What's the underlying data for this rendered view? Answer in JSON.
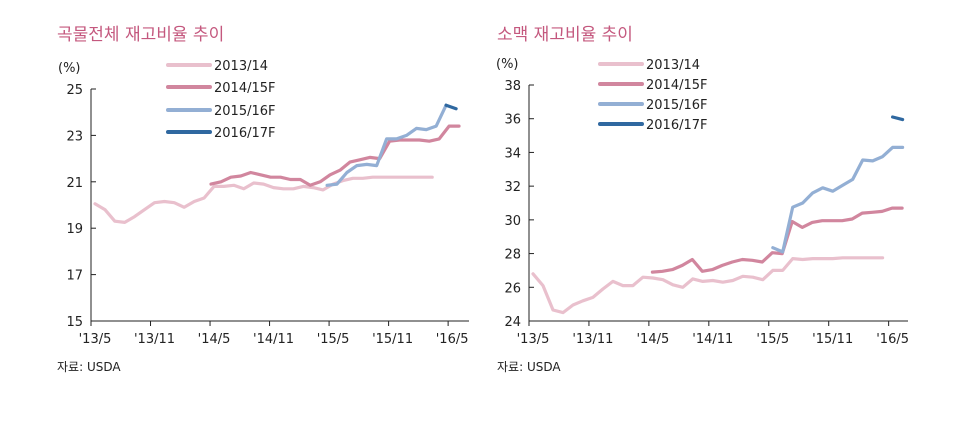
{
  "colors": {
    "s1": "#e9c0cd",
    "s2": "#d1869e",
    "s3": "#93afd4",
    "s4": "#2f68a0",
    "title": "#c4587e"
  },
  "chart_data": [
    {
      "type": "line",
      "title": "곡물전체 재고비율 추이",
      "ylabel": "(%)",
      "source": "자료: USDA",
      "ylim": [
        15,
        25
      ],
      "yticks": [
        "15",
        "17",
        "19",
        "21",
        "23",
        "25"
      ],
      "xticks": [
        "'13/5",
        "'13/11",
        "'14/5",
        "'14/11",
        "'15/5",
        "'15/11",
        "'16/5"
      ],
      "xunit": "months since 2013/5",
      "series": [
        {
          "name": "2013/14",
          "start": 0.4,
          "values": [
            20.05,
            19.8,
            19.3,
            19.25,
            19.5,
            19.8,
            20.1,
            20.15,
            20.1,
            19.9,
            20.15,
            20.3,
            20.8,
            20.8,
            20.85,
            20.7,
            20.95,
            20.9,
            20.75,
            20.7,
            20.7,
            20.8,
            20.75,
            20.65,
            20.9,
            21.05,
            21.15,
            21.15,
            21.2,
            21.2,
            21.2,
            21.2,
            21.2,
            21.2,
            21.2
          ]
        },
        {
          "name": "2014/15F",
          "start": 12.1,
          "values": [
            20.9,
            21.0,
            21.2,
            21.25,
            21.4,
            21.3,
            21.2,
            21.2,
            21.1,
            21.1,
            20.85,
            21.0,
            21.3,
            21.5,
            21.85,
            21.95,
            22.05,
            22.0,
            22.75,
            22.8,
            22.8,
            22.8,
            22.75,
            22.85,
            23.4,
            23.4
          ]
        },
        {
          "name": "2015/16F",
          "start": 23.8,
          "values": [
            20.85,
            20.9,
            21.4,
            21.7,
            21.75,
            21.7,
            22.85,
            22.85,
            23.0,
            23.3,
            23.25,
            23.4,
            24.3
          ]
        },
        {
          "name": "2016/17F",
          "start": 35.8,
          "values": [
            24.3,
            24.15
          ]
        }
      ]
    },
    {
      "type": "line",
      "title": "소맥 재고비율 추이",
      "ylabel": "(%)",
      "source": "자료: USDA",
      "ylim": [
        24,
        38
      ],
      "yticks": [
        "24",
        "26",
        "28",
        "30",
        "32",
        "34",
        "36",
        "38"
      ],
      "xticks": [
        "'13/5",
        "'13/11",
        "'14/5",
        "'14/11",
        "'15/5",
        "'15/11",
        "'16/5"
      ],
      "xunit": "months since 2013/5",
      "series": [
        {
          "name": "2013/14",
          "start": 0.4,
          "values": [
            26.8,
            26.1,
            24.65,
            24.5,
            24.95,
            25.2,
            25.4,
            25.9,
            26.35,
            26.1,
            26.1,
            26.6,
            26.55,
            26.45,
            26.15,
            26.0,
            26.5,
            26.35,
            26.4,
            26.3,
            26.4,
            26.65,
            26.6,
            26.45,
            27.0,
            27.0,
            27.7,
            27.65,
            27.7,
            27.7,
            27.7,
            27.75,
            27.75,
            27.75,
            27.75,
            27.75
          ]
        },
        {
          "name": "2014/15F",
          "start": 12.35,
          "values": [
            26.9,
            26.95,
            27.05,
            27.3,
            27.65,
            26.95,
            27.05,
            27.3,
            27.5,
            27.65,
            27.6,
            27.5,
            28.05,
            28.0,
            29.9,
            29.55,
            29.85,
            29.95,
            29.95,
            29.95,
            30.05,
            30.4,
            30.45,
            30.5,
            30.7,
            30.7
          ]
        },
        {
          "name": "2015/16F",
          "start": 24.4,
          "values": [
            28.35,
            28.1,
            30.75,
            31.0,
            31.6,
            31.9,
            31.7,
            32.05,
            32.4,
            33.55,
            33.5,
            33.75,
            34.3,
            34.3
          ]
        },
        {
          "name": "2016/17F",
          "start": 36.4,
          "values": [
            36.1,
            35.95
          ]
        }
      ]
    }
  ]
}
